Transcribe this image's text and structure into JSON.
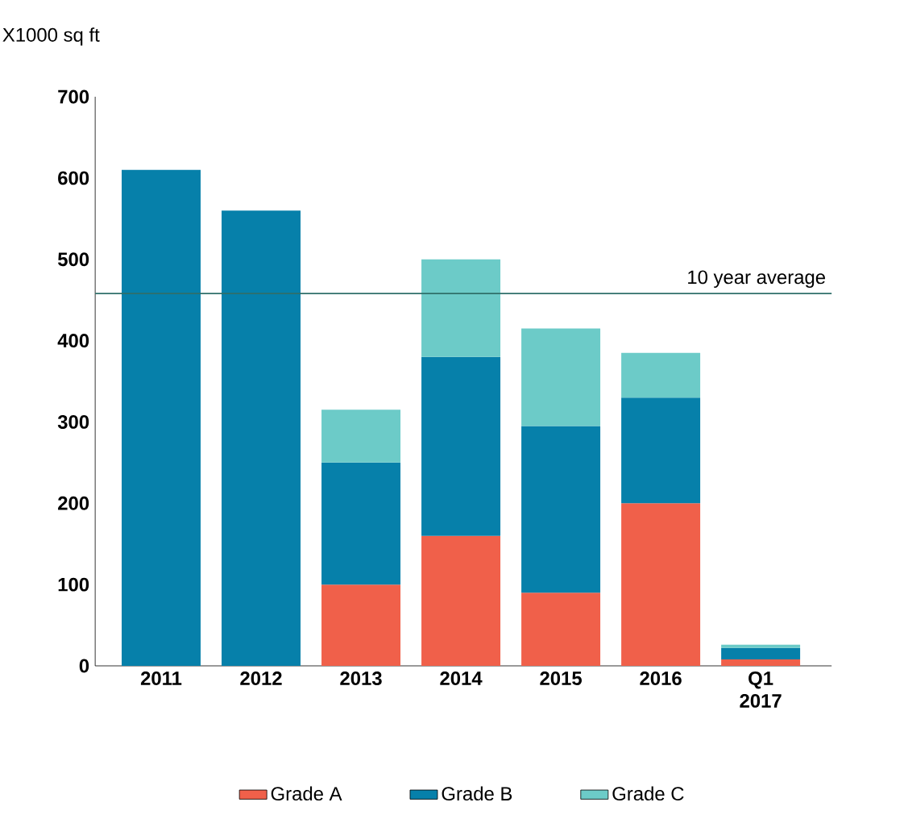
{
  "chart_data": {
    "type": "bar",
    "stacked": true,
    "ylabel": "X1000 sq ft",
    "categories": [
      "2011",
      "2012",
      "2013",
      "2014",
      "2015",
      "2016",
      "Q1 2017"
    ],
    "series": [
      {
        "name": "Grade A",
        "color": "#f0604a",
        "values": [
          null,
          null,
          100,
          160,
          90,
          200,
          8
        ]
      },
      {
        "name": "Grade B",
        "color": "#0680aa",
        "values": [
          610,
          560,
          150,
          220,
          205,
          130,
          14
        ]
      },
      {
        "name": "Grade C",
        "color": "#6ccbc8",
        "values": [
          null,
          null,
          65,
          120,
          120,
          55,
          4
        ]
      }
    ],
    "ylim": [
      0,
      700
    ],
    "yticks": [
      0,
      100,
      200,
      300,
      400,
      500,
      600,
      700
    ],
    "ref_lines": [
      {
        "axis": "y",
        "value": 458,
        "label": "10 year average",
        "color": "#2f6f6a"
      }
    ],
    "grid": false,
    "legend": "bottom"
  }
}
